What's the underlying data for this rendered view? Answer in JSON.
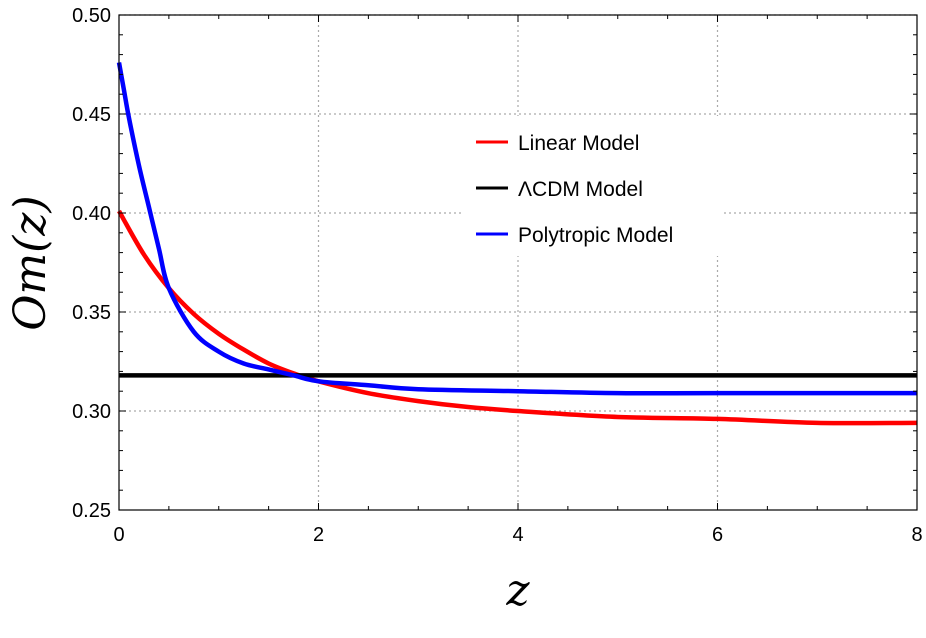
{
  "chart_data": {
    "type": "line",
    "title": "",
    "xlabel": "z",
    "ylabel": "Om(z)",
    "xlim": [
      0,
      8
    ],
    "ylim": [
      0.25,
      0.5
    ],
    "xticks": [
      "0",
      "2",
      "4",
      "6",
      "8"
    ],
    "yticks": [
      "0.25",
      "0.30",
      "0.35",
      "0.40",
      "0.45",
      "0.50"
    ],
    "grid": true,
    "legend_position": "center-right, upper area",
    "series": [
      {
        "name": "Linear Model",
        "color": "#ff0000",
        "x": [
          0,
          0.25,
          0.5,
          0.75,
          1,
          1.25,
          1.5,
          1.75,
          2,
          2.5,
          3,
          3.5,
          4,
          5,
          6,
          7,
          8
        ],
        "y": [
          0.401,
          0.379,
          0.362,
          0.349,
          0.339,
          0.331,
          0.324,
          0.319,
          0.315,
          0.309,
          0.305,
          0.302,
          0.3,
          0.297,
          0.296,
          0.294,
          0.294
        ]
      },
      {
        "name": "ΛCDM Model",
        "color": "#000000",
        "x": [
          0,
          8
        ],
        "y": [
          0.318,
          0.318
        ]
      },
      {
        "name": "Polytropic Model",
        "color": "#0000ff",
        "x": [
          0,
          0.05,
          0.1,
          0.2,
          0.3,
          0.4,
          0.5,
          0.75,
          1,
          1.25,
          1.5,
          1.75,
          2,
          2.5,
          3,
          4,
          5,
          6,
          8
        ],
        "y": [
          0.476,
          0.462,
          0.448,
          0.424,
          0.403,
          0.382,
          0.362,
          0.34,
          0.33,
          0.324,
          0.321,
          0.318,
          0.315,
          0.313,
          0.311,
          0.31,
          0.309,
          0.309,
          0.309
        ]
      }
    ]
  }
}
